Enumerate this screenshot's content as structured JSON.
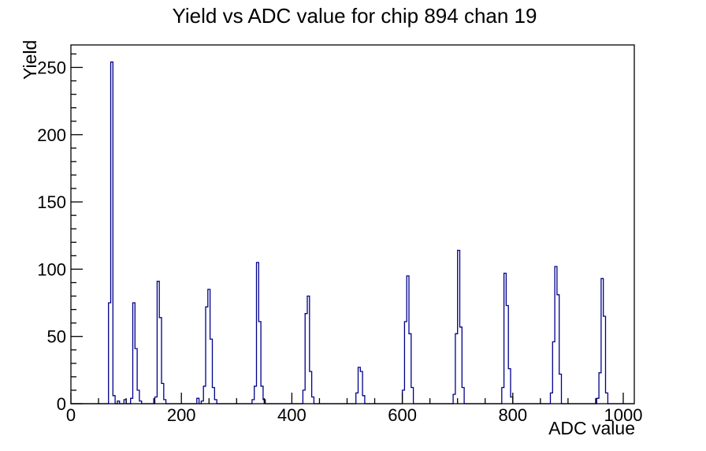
{
  "window": {
    "background": "#ffffff"
  },
  "colors": {
    "hist_line": "#00008b",
    "axis_line": "#000000",
    "text": "#000000",
    "background": "#ffffff"
  },
  "chart_data": {
    "type": "bar",
    "title": "Yield vs ADC value for chip 894 chan 19",
    "xlabel": "ADC value",
    "ylabel": "Yield",
    "xlim": [
      0,
      1020
    ],
    "ylim": [
      0,
      266.7
    ],
    "grid": false,
    "legend": null,
    "x_tick_labels": [
      "0",
      "200",
      "400",
      "600",
      "800",
      "1000"
    ],
    "x_major_ticks": [
      0,
      200,
      400,
      600,
      800,
      1000
    ],
    "x_minor_step": 50,
    "y_tick_labels": [
      "0",
      "50",
      "100",
      "150",
      "200",
      "250"
    ],
    "y_major_ticks": [
      0,
      50,
      100,
      150,
      200,
      250
    ],
    "y_minor_step": 10,
    "bin_width": 4,
    "bins": [
      [
        68,
        75
      ],
      [
        72,
        254
      ],
      [
        76,
        6
      ],
      [
        84,
        2
      ],
      [
        96,
        3
      ],
      [
        108,
        4
      ],
      [
        112,
        75
      ],
      [
        116,
        41
      ],
      [
        120,
        10
      ],
      [
        124,
        2
      ],
      [
        152,
        5
      ],
      [
        156,
        91
      ],
      [
        160,
        64
      ],
      [
        164,
        15
      ],
      [
        168,
        3
      ],
      [
        228,
        4
      ],
      [
        236,
        2
      ],
      [
        240,
        13
      ],
      [
        244,
        72
      ],
      [
        248,
        85
      ],
      [
        252,
        48
      ],
      [
        256,
        12
      ],
      [
        260,
        3
      ],
      [
        328,
        3
      ],
      [
        332,
        13
      ],
      [
        336,
        105
      ],
      [
        340,
        61
      ],
      [
        344,
        13
      ],
      [
        348,
        3
      ],
      [
        420,
        10
      ],
      [
        424,
        67
      ],
      [
        428,
        80
      ],
      [
        432,
        24
      ],
      [
        436,
        5
      ],
      [
        516,
        8
      ],
      [
        520,
        27
      ],
      [
        524,
        24
      ],
      [
        528,
        6
      ],
      [
        600,
        10
      ],
      [
        604,
        61
      ],
      [
        608,
        95
      ],
      [
        612,
        52
      ],
      [
        616,
        12
      ],
      [
        692,
        7
      ],
      [
        696,
        52
      ],
      [
        700,
        114
      ],
      [
        704,
        57
      ],
      [
        708,
        12
      ],
      [
        780,
        12
      ],
      [
        784,
        97
      ],
      [
        788,
        73
      ],
      [
        792,
        26
      ],
      [
        796,
        5
      ],
      [
        868,
        8
      ],
      [
        872,
        46
      ],
      [
        876,
        102
      ],
      [
        880,
        81
      ],
      [
        884,
        22
      ],
      [
        952,
        4
      ],
      [
        956,
        23
      ],
      [
        960,
        93
      ],
      [
        964,
        65
      ],
      [
        968,
        8
      ]
    ]
  }
}
